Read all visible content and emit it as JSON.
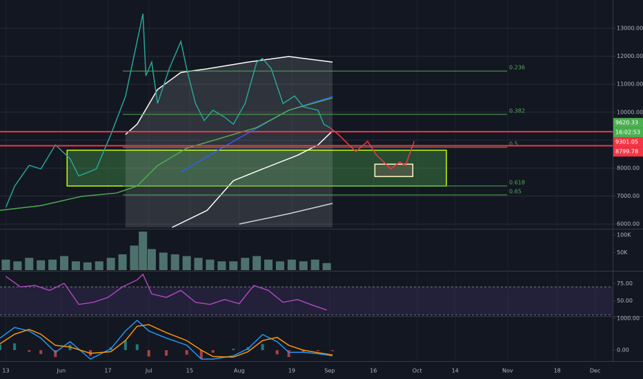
{
  "chart_data": [
    {
      "type": "line",
      "xlim": [
        -2,
        208
      ],
      "xticks": [
        {
          "value": 0,
          "label": "13"
        },
        {
          "value": 19,
          "label": "Jun"
        },
        {
          "value": 35,
          "label": "17"
        },
        {
          "value": 49,
          "label": "Jul"
        },
        {
          "value": 63,
          "label": "15"
        },
        {
          "value": 80,
          "label": "Aug"
        },
        {
          "value": 98,
          "label": "19"
        },
        {
          "value": 111,
          "label": "Sep"
        },
        {
          "value": 126,
          "label": "16"
        },
        {
          "value": 141,
          "label": "Oct"
        },
        {
          "value": 154,
          "label": "14"
        },
        {
          "value": 172,
          "label": "Nov"
        },
        {
          "value": 189,
          "label": "18"
        },
        {
          "value": 202,
          "label": "Dec"
        }
      ],
      "ylim": [
        5880,
        14010
      ],
      "yticks": [
        {
          "value": 13000,
          "label": "13000.00"
        },
        {
          "value": 12000,
          "label": "12000.00"
        },
        {
          "value": 11000,
          "label": "11000.00"
        },
        {
          "value": 10000,
          "label": "10000.00"
        },
        {
          "value": 9000,
          "label": "9000.00"
        },
        {
          "value": 8000,
          "label": "8000.00"
        },
        {
          "value": 7000,
          "label": "7000.00"
        },
        {
          "value": 6000,
          "label": "6000.00"
        }
      ],
      "grid": true,
      "series": [
        {
          "color": "#ffffff",
          "fill": "#ffffff",
          "x": [
            41,
            45,
            52,
            60,
            69,
            83,
            97,
            112
          ],
          "values": [
            9200,
            9570,
            10810,
            11420,
            11550,
            11790,
            11990,
            11790
          ]
        },
        {
          "color": "#ffffff",
          "x": [
            57,
            69,
            78,
            88,
            100,
            107,
            112
          ],
          "values": [
            5880,
            6490,
            7550,
            7970,
            8460,
            8830,
            9330
          ]
        },
        {
          "color": "#d1d4dc",
          "x": [
            80,
            97,
            112
          ],
          "values": [
            6000,
            6370,
            6740
          ]
        },
        {
          "color": "#2962ff",
          "x": [
            60,
            78,
            97,
            112
          ],
          "values": [
            7850,
            8960,
            10070,
            10560
          ]
        },
        {
          "color": "#4caf50",
          "x": [
            -2,
            12,
            26,
            38,
            45,
            52,
            62,
            74,
            86,
            97,
            112
          ],
          "values": [
            6490,
            6660,
            6990,
            7110,
            7360,
            8090,
            8710,
            9080,
            9450,
            10070,
            10510
          ]
        },
        {
          "color": "#26a69a",
          "x": [
            0,
            3,
            8,
            12,
            17,
            22,
            25,
            31,
            36,
            41,
            44,
            47,
            48,
            50,
            52,
            56,
            60,
            62,
            65,
            68,
            71,
            75,
            78,
            82,
            86,
            88,
            91,
            95,
            99,
            102,
            107,
            109,
            111
          ],
          "values": [
            6600,
            7350,
            8100,
            7970,
            8830,
            8340,
            7720,
            7970,
            9200,
            10560,
            12040,
            13520,
            11300,
            11790,
            10310,
            11550,
            12530,
            11550,
            10310,
            9700,
            10070,
            9820,
            9570,
            10310,
            11790,
            11920,
            11550,
            10310,
            10580,
            10190,
            10070,
            9570,
            9450
          ]
        },
        {
          "color": "#f23645",
          "x": [
            111,
            114,
            120,
            124,
            127,
            132,
            135,
            137,
            140
          ],
          "values": [
            9450,
            9200,
            8590,
            8960,
            8470,
            7970,
            8220,
            8100,
            8960
          ]
        }
      ],
      "zones": [
        {
          "x": [
            21,
            151
          ],
          "y": [
            7360,
            8640
          ],
          "color": "#4caf50",
          "border": "#c6ff00"
        },
        {
          "x": [
            126.5,
            139.5
          ],
          "y": [
            7700,
            8140
          ],
          "color": "#8d6e63",
          "border": "#fff9c4"
        }
      ],
      "levels": [
        {
          "label": "0.236",
          "value": 11470
        },
        {
          "label": "0.382",
          "value": 9920
        },
        {
          "label": "0.5",
          "value": 8740
        },
        {
          "label": "0.618",
          "value": 7360
        },
        {
          "label": "0.65",
          "value": 7040
        }
      ],
      "price_tags": [
        {
          "value": 9620.33,
          "color": "#4caf50"
        },
        {
          "value": 9301.05,
          "color": "#f23645",
          "line": true
        },
        {
          "value": 8799.78,
          "color": "#f23645",
          "line": true
        }
      ],
      "countdown": "16:02:53"
    },
    {
      "type": "bar",
      "ylim": [
        0,
        112000
      ],
      "yticks": [
        {
          "value": 100000,
          "label": "100K"
        },
        {
          "value": 50000,
          "label": "50K"
        }
      ],
      "color": "#5d8a82",
      "x": [
        0,
        4,
        8,
        12,
        16,
        20,
        24,
        28,
        32,
        36,
        40,
        44,
        47,
        50,
        54,
        58,
        62,
        66,
        70,
        74,
        78,
        82,
        86,
        90,
        94,
        98,
        102,
        106,
        110
      ],
      "values": [
        30000,
        25000,
        35000,
        28000,
        30000,
        40000,
        25000,
        22000,
        25000,
        35000,
        45000,
        70000,
        110000,
        60000,
        50000,
        45000,
        40000,
        35000,
        30000,
        25000,
        25000,
        35000,
        40000,
        30000,
        25000,
        30000,
        25000,
        30000,
        20000
      ]
    },
    {
      "type": "line",
      "ylim": [
        29,
        91
      ],
      "yticks": [
        {
          "value": 75,
          "label": "75.00"
        },
        {
          "value": 50,
          "label": "50.00"
        }
      ],
      "band": [
        30,
        70
      ],
      "series": [
        {
          "color": "#ab47bc",
          "x": [
            0,
            5,
            10,
            15,
            20,
            25,
            30,
            35,
            40,
            45,
            47,
            50,
            55,
            60,
            65,
            70,
            75,
            80,
            85,
            90,
            95,
            100,
            105,
            110
          ],
          "values": [
            85,
            70,
            72,
            65,
            75,
            45,
            48,
            55,
            70,
            80,
            88,
            60,
            55,
            65,
            48,
            45,
            52,
            46,
            72,
            65,
            48,
            52,
            44,
            37
          ]
        }
      ]
    },
    {
      "type": "line",
      "ylim": [
        -300,
        1040
      ],
      "yticks": [
        {
          "value": 1000,
          "label": "1000.00"
        },
        {
          "value": 0,
          "label": "0.00"
        }
      ],
      "histogram": {
        "colors": [
          "#26a69a",
          "#ef5350"
        ],
        "x": [
          -2,
          3,
          8,
          12,
          17,
          22,
          29,
          36,
          41,
          45,
          49,
          55,
          62,
          67,
          71,
          78,
          83,
          88,
          93,
          97,
          102,
          107,
          112
        ],
        "values": [
          178,
          211,
          -50,
          -122,
          -217,
          167,
          -180,
          94,
          300,
          183,
          -200,
          -172,
          -144,
          -280,
          -80,
          42,
          94,
          189,
          -133,
          -217,
          -67,
          -31,
          -28
        ]
      },
      "series": [
        {
          "color": "#2196f3",
          "x": [
            -2,
            3,
            8,
            12,
            17,
            22,
            29,
            36,
            41,
            45,
            49,
            55,
            62,
            67,
            71,
            78,
            83,
            88,
            93,
            97,
            102,
            107,
            112
          ],
          "values": [
            378,
            711,
            600,
            378,
            -67,
            267,
            -280,
            44,
            600,
            933,
            600,
            378,
            156,
            -280,
            -280,
            -178,
            44,
            489,
            267,
            -67,
            -67,
            -111,
            -178
          ]
        },
        {
          "color": "#ff9800",
          "x": [
            -2,
            3,
            8,
            12,
            17,
            22,
            29,
            36,
            41,
            45,
            49,
            55,
            62,
            67,
            71,
            78,
            83,
            88,
            93,
            97,
            102,
            107,
            112
          ],
          "values": [
            200,
            500,
            650,
            500,
            150,
            100,
            -100,
            -50,
            300,
            750,
            800,
            550,
            300,
            0,
            -200,
            -220,
            -50,
            300,
            400,
            150,
            0,
            -80,
            -150
          ]
        }
      ]
    }
  ]
}
